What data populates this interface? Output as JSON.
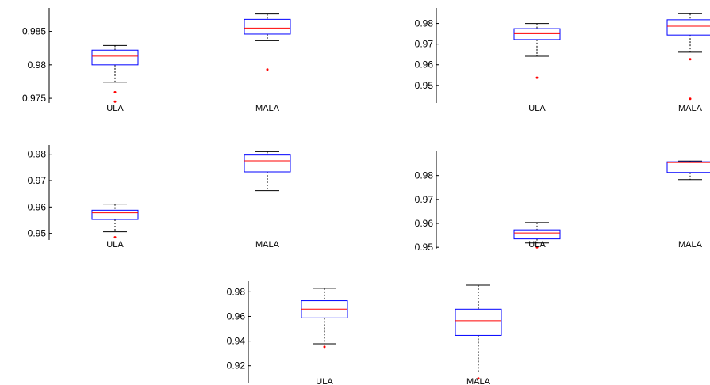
{
  "chart_data": [
    {
      "type": "box",
      "categories": [
        "ULA",
        "MALA"
      ],
      "ylim": [
        0.9743,
        0.9885
      ],
      "yticks": [
        "0.975",
        "0.98",
        "0.985"
      ],
      "boxes": [
        {
          "category": "ULA",
          "whisker_low": 0.9774,
          "q1": 0.98,
          "median": 0.9813,
          "q3": 0.9822,
          "whisker_high": 0.9829,
          "outliers": [
            0.9759,
            0.9745
          ]
        },
        {
          "category": "MALA",
          "whisker_low": 0.9836,
          "q1": 0.9846,
          "median": 0.9855,
          "q3": 0.9868,
          "whisker_high": 0.9876,
          "outliers": [
            0.9793
          ]
        }
      ]
    },
    {
      "type": "box",
      "categories": [
        "ULA",
        "MALA"
      ],
      "ylim": [
        0.9415,
        0.9875
      ],
      "yticks": [
        "0.95",
        "0.96",
        "0.97",
        "0.98"
      ],
      "boxes": [
        {
          "category": "ULA",
          "whisker_low": 0.9641,
          "q1": 0.9722,
          "median": 0.9751,
          "q3": 0.9775,
          "whisker_high": 0.98,
          "outliers": [
            0.9537
          ]
        },
        {
          "category": "MALA",
          "whisker_low": 0.9661,
          "q1": 0.9744,
          "median": 0.9787,
          "q3": 0.9818,
          "whisker_high": 0.9847,
          "outliers": [
            0.9627,
            0.9435
          ]
        }
      ]
    },
    {
      "type": "box",
      "categories": [
        "ULA",
        "MALA"
      ],
      "ylim": [
        0.9475,
        0.9835
      ],
      "yticks": [
        "0.95",
        "0.96",
        "0.97",
        "0.98"
      ],
      "boxes": [
        {
          "category": "ULA",
          "whisker_low": 0.9506,
          "q1": 0.9553,
          "median": 0.9578,
          "q3": 0.9588,
          "whisker_high": 0.9611,
          "outliers": [
            0.9485
          ]
        },
        {
          "category": "MALA",
          "whisker_low": 0.9662,
          "q1": 0.9733,
          "median": 0.9775,
          "q3": 0.9797,
          "whisker_high": 0.981,
          "outliers": []
        }
      ]
    },
    {
      "type": "box",
      "categories": [
        "ULA",
        "MALA"
      ],
      "ylim": [
        0.9494,
        0.9905
      ],
      "yticks": [
        "0.95",
        "0.96",
        "0.97",
        "0.98"
      ],
      "boxes": [
        {
          "category": "ULA",
          "whisker_low": 0.9518,
          "q1": 0.9535,
          "median": 0.956,
          "q3": 0.9573,
          "whisker_high": 0.9604,
          "outliers": [
            0.95
          ]
        },
        {
          "category": "MALA",
          "whisker_low": 0.9783,
          "q1": 0.9813,
          "median": 0.9855,
          "q3": 0.9858,
          "whisker_high": 0.9861,
          "outliers": []
        }
      ]
    },
    {
      "type": "box",
      "categories": [
        "ULA",
        "MALA"
      ],
      "ylim": [
        0.9063,
        0.9886
      ],
      "yticks": [
        "0.92",
        "0.94",
        "0.96",
        "0.98"
      ],
      "boxes": [
        {
          "category": "ULA",
          "whisker_low": 0.9378,
          "q1": 0.9588,
          "median": 0.9659,
          "q3": 0.9728,
          "whisker_high": 0.9829,
          "outliers": [
            0.9353
          ]
        },
        {
          "category": "MALA",
          "whisker_low": 0.915,
          "q1": 0.9446,
          "median": 0.9565,
          "q3": 0.9659,
          "whisker_high": 0.9854,
          "outliers": [
            0.9097
          ]
        }
      ]
    }
  ],
  "colors": {
    "box": "#0000ff",
    "median": "#ff0000",
    "whisker": "#000000",
    "outlier": "#ff0000"
  }
}
